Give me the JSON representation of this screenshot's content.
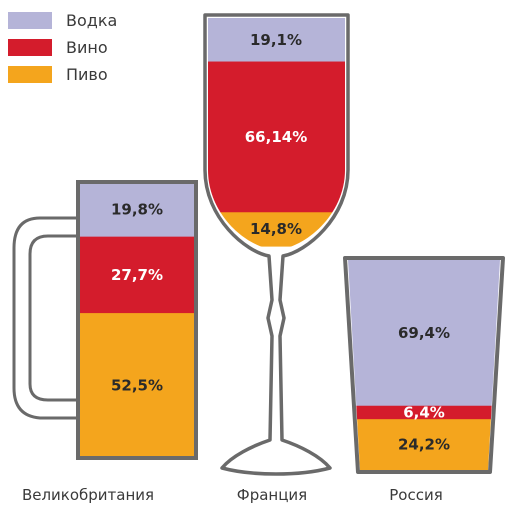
{
  "chart_data": {
    "type": "bar",
    "stacked": true,
    "categories": [
      "Великобритания",
      "Франция",
      "Россия"
    ],
    "series": [
      {
        "name": "Водка",
        "color": "#b5b4d8",
        "values": [
          19.8,
          19.1,
          69.4
        ],
        "labels": [
          "19,8%",
          "19,1%",
          "69,4%"
        ]
      },
      {
        "name": "Вино",
        "color": "#d41c2c",
        "values": [
          27.7,
          66.14,
          6.4
        ],
        "labels": [
          "27,7%",
          "66,14%",
          "6,4%"
        ]
      },
      {
        "name": "Пиво",
        "color": "#f4a51d",
        "values": [
          52.5,
          14.8,
          24.2
        ],
        "labels": [
          "52,5%",
          "14,8%",
          "24,2%"
        ]
      }
    ],
    "vessels": [
      "beer-mug",
      "wine-glass",
      "tumbler"
    ],
    "legend_position": "top-left",
    "title": "",
    "xlabel": "",
    "ylabel": ""
  }
}
